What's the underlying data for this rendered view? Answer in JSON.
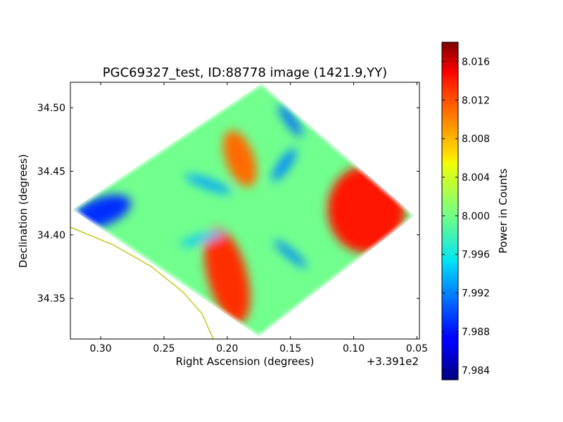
{
  "chart_data": {
    "type": "heatmap",
    "title": "PGC69327_test, ID:88778 image (1421.9,YY)",
    "xlabel": "Right Ascension (degrees)",
    "ylabel": "Declination (degrees)",
    "x_offset_label": "+3.391e2",
    "xlim": [
      0.324,
      0.048
    ],
    "ylim": [
      34.318,
      34.52
    ],
    "x_ticks": [
      0.3,
      0.25,
      0.2,
      0.15,
      0.1,
      0.05
    ],
    "x_tick_labels": [
      "0.30",
      "0.25",
      "0.20",
      "0.15",
      "0.10",
      "0.05"
    ],
    "y_ticks": [
      34.35,
      34.4,
      34.45,
      34.5
    ],
    "y_tick_labels": [
      "34.35",
      "34.40",
      "34.45",
      "34.50"
    ],
    "colorbar": {
      "label": "Power in Counts",
      "range": [
        7.983,
        8.018
      ],
      "ticks": [
        7.984,
        7.988,
        7.992,
        7.996,
        8.0,
        8.004,
        8.008,
        8.012,
        8.016
      ],
      "tick_labels": [
        "7.984",
        "7.988",
        "7.992",
        "7.996",
        "8.000",
        "8.004",
        "8.008",
        "8.012",
        "8.016"
      ],
      "colormap": "jet"
    },
    "footprint_corners": [
      {
        "ra": 0.173,
        "dec": 34.519
      },
      {
        "ra": 0.052,
        "dec": 34.415
      },
      {
        "ra": 0.175,
        "dec": 34.32
      },
      {
        "ra": 0.322,
        "dec": 34.42
      }
    ],
    "features": [
      {
        "ra": 0.09,
        "dec": 34.42,
        "value": 8.013,
        "description": "red lobe east"
      },
      {
        "ra": 0.2,
        "dec": 34.368,
        "value": 8.012,
        "description": "red lobe south"
      },
      {
        "ra": 0.19,
        "dec": 34.46,
        "value": 8.01,
        "description": "orange lobe north"
      },
      {
        "ra": 0.3,
        "dec": 34.418,
        "value": 7.989,
        "description": "blue lobe west"
      },
      {
        "ra": 0.15,
        "dec": 34.49,
        "value": 7.991,
        "description": "blue streak north"
      },
      {
        "ra": 0.155,
        "dec": 34.455,
        "value": 7.992,
        "description": "blue arm northeast"
      },
      {
        "ra": 0.215,
        "dec": 34.44,
        "value": 7.993,
        "description": "blue arm northwest"
      },
      {
        "ra": 0.15,
        "dec": 34.385,
        "value": 7.992,
        "description": "blue arm southeast"
      },
      {
        "ra": 0.22,
        "dec": 34.397,
        "value": 7.994,
        "description": "blue arm southwest"
      }
    ],
    "background_value": 8.0,
    "overlay_curve": {
      "color": "#bfbf00",
      "points": [
        {
          "ra": 0.324,
          "dec": 34.406
        },
        {
          "ra": 0.29,
          "dec": 34.392
        },
        {
          "ra": 0.26,
          "dec": 34.375
        },
        {
          "ra": 0.235,
          "dec": 34.355
        },
        {
          "ra": 0.22,
          "dec": 34.338
        },
        {
          "ra": 0.211,
          "dec": 34.318
        }
      ]
    }
  }
}
